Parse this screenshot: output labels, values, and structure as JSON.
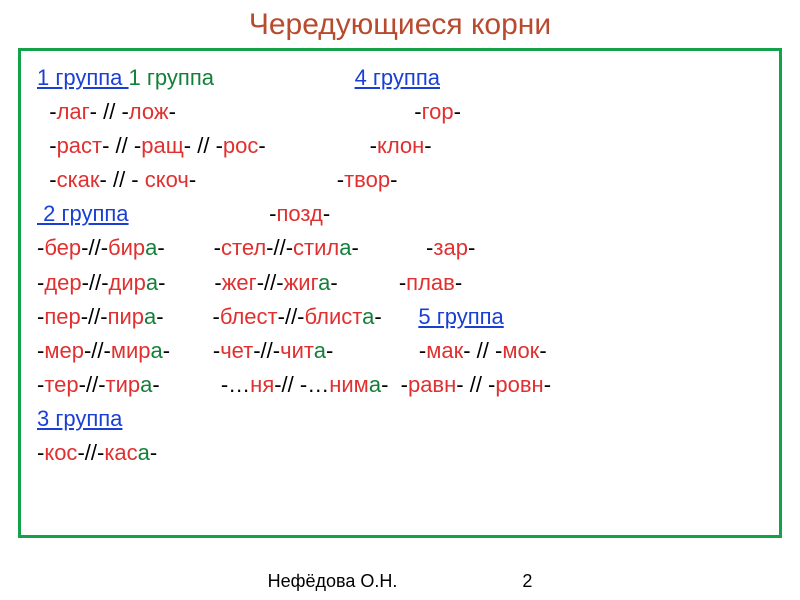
{
  "colors": {
    "title": "#b84a2e",
    "border": "#13a24a",
    "link": "#1a3fd4",
    "red": "#e03030",
    "green": "#13803a",
    "black": "#000000",
    "white": "#ffffff"
  },
  "title": "Чередующиеся корни",
  "footer_author": "Нефёдова О.Н.",
  "footer_page": "2",
  "rows": [
    [
      {
        "t": "1 группа ",
        "c": "link",
        "u": true
      },
      {
        "t": "1 группа                       ",
        "c": "green"
      },
      {
        "t": "4 группа",
        "c": "link",
        "u": true
      }
    ],
    [
      {
        "t": "  -",
        "c": "black"
      },
      {
        "t": "лаг",
        "c": "red"
      },
      {
        "t": "- // -",
        "c": "black"
      },
      {
        "t": "лож",
        "c": "red"
      },
      {
        "t": "-                                       -",
        "c": "black"
      },
      {
        "t": "гор",
        "c": "red"
      },
      {
        "t": "-",
        "c": "black"
      }
    ],
    [
      {
        "t": "  -",
        "c": "black"
      },
      {
        "t": "раст",
        "c": "red"
      },
      {
        "t": "- // -",
        "c": "black"
      },
      {
        "t": "ращ",
        "c": "red"
      },
      {
        "t": "- // -",
        "c": "black"
      },
      {
        "t": "рос",
        "c": "red"
      },
      {
        "t": "-                 -",
        "c": "black"
      },
      {
        "t": "клон",
        "c": "red"
      },
      {
        "t": "-",
        "c": "black"
      }
    ],
    [
      {
        "t": "  -",
        "c": "black"
      },
      {
        "t": "скак",
        "c": "red"
      },
      {
        "t": "- // - ",
        "c": "black"
      },
      {
        "t": "скоч",
        "c": "red"
      },
      {
        "t": "-                       -",
        "c": "black"
      },
      {
        "t": "твор",
        "c": "red"
      },
      {
        "t": "-",
        "c": "black"
      }
    ],
    [
      {
        "t": " 2 группа",
        "c": "link",
        "u": true
      },
      {
        "t": "                       -",
        "c": "black"
      },
      {
        "t": "позд",
        "c": "red"
      },
      {
        "t": "-",
        "c": "black"
      }
    ],
    [
      {
        "t": "-",
        "c": "black"
      },
      {
        "t": "бер",
        "c": "red"
      },
      {
        "t": "-//-",
        "c": "black"
      },
      {
        "t": "бир",
        "c": "red"
      },
      {
        "t": "а",
        "c": "green"
      },
      {
        "t": "-        -",
        "c": "black"
      },
      {
        "t": "стел",
        "c": "red"
      },
      {
        "t": "-//-",
        "c": "black"
      },
      {
        "t": "стил",
        "c": "red"
      },
      {
        "t": "а",
        "c": "green"
      },
      {
        "t": "-           -",
        "c": "black"
      },
      {
        "t": "зар",
        "c": "red"
      },
      {
        "t": "-",
        "c": "black"
      }
    ],
    [
      {
        "t": "-",
        "c": "black"
      },
      {
        "t": "дер",
        "c": "red"
      },
      {
        "t": "-//-",
        "c": "black"
      },
      {
        "t": "дир",
        "c": "red"
      },
      {
        "t": "а",
        "c": "green"
      },
      {
        "t": "-        -",
        "c": "black"
      },
      {
        "t": "жег",
        "c": "red"
      },
      {
        "t": "-//-",
        "c": "black"
      },
      {
        "t": "жиг",
        "c": "red"
      },
      {
        "t": "а",
        "c": "green"
      },
      {
        "t": "-          -",
        "c": "black"
      },
      {
        "t": "плав",
        "c": "red"
      },
      {
        "t": "-",
        "c": "black"
      }
    ],
    [
      {
        "t": "-",
        "c": "black"
      },
      {
        "t": "пер",
        "c": "red"
      },
      {
        "t": "-//-",
        "c": "black"
      },
      {
        "t": "пир",
        "c": "red"
      },
      {
        "t": "а",
        "c": "green"
      },
      {
        "t": "-        -",
        "c": "black"
      },
      {
        "t": "блест",
        "c": "red"
      },
      {
        "t": "-//-",
        "c": "black"
      },
      {
        "t": "блист",
        "c": "red"
      },
      {
        "t": "а",
        "c": "green"
      },
      {
        "t": "-      ",
        "c": "black"
      },
      {
        "t": "5 группа",
        "c": "link",
        "u": true
      }
    ],
    [
      {
        "t": "-",
        "c": "black"
      },
      {
        "t": "мер",
        "c": "red"
      },
      {
        "t": "-//-",
        "c": "black"
      },
      {
        "t": "мир",
        "c": "red"
      },
      {
        "t": "а",
        "c": "green"
      },
      {
        "t": "-       -",
        "c": "black"
      },
      {
        "t": "чет",
        "c": "red"
      },
      {
        "t": "-//-",
        "c": "black"
      },
      {
        "t": "чит",
        "c": "red"
      },
      {
        "t": "а",
        "c": "green"
      },
      {
        "t": "-              -",
        "c": "black"
      },
      {
        "t": "мак",
        "c": "red"
      },
      {
        "t": "- // -",
        "c": "black"
      },
      {
        "t": "мок",
        "c": "red"
      },
      {
        "t": "-",
        "c": "black"
      }
    ],
    [
      {
        "t": "-",
        "c": "black"
      },
      {
        "t": "тер",
        "c": "red"
      },
      {
        "t": "-//-",
        "c": "black"
      },
      {
        "t": "тир",
        "c": "red"
      },
      {
        "t": "а",
        "c": "green"
      },
      {
        "t": "-          -…",
        "c": "black"
      },
      {
        "t": "ня",
        "c": "red"
      },
      {
        "t": "-// -…",
        "c": "black"
      },
      {
        "t": "ним",
        "c": "red"
      },
      {
        "t": "а",
        "c": "green"
      },
      {
        "t": "-  -",
        "c": "black"
      },
      {
        "t": "равн",
        "c": "red"
      },
      {
        "t": "- // -",
        "c": "black"
      },
      {
        "t": "ровн",
        "c": "red"
      },
      {
        "t": "-",
        "c": "black"
      }
    ],
    [
      {
        "t": "3 группа",
        "c": "link",
        "u": true
      }
    ],
    [
      {
        "t": "-",
        "c": "black"
      },
      {
        "t": "кос",
        "c": "red"
      },
      {
        "t": "-//-",
        "c": "black"
      },
      {
        "t": "кас",
        "c": "red"
      },
      {
        "t": "а",
        "c": "green"
      },
      {
        "t": "-",
        "c": "black"
      }
    ]
  ]
}
